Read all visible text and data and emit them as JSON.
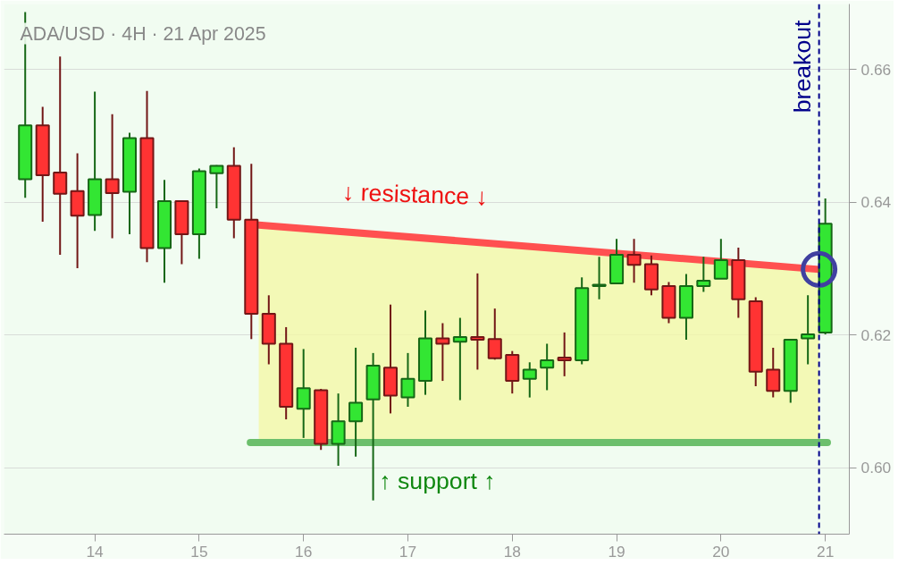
{
  "chart_data": {
    "type": "candlestick",
    "title": "ADA/USD · 4H · 21 Apr 2025",
    "x": [
      13.333,
      13.5,
      13.667,
      13.833,
      14.0,
      14.167,
      14.333,
      14.5,
      14.667,
      14.833,
      15.0,
      15.167,
      15.333,
      15.5,
      15.667,
      15.833,
      16.0,
      16.167,
      16.333,
      16.5,
      16.667,
      16.833,
      17.0,
      17.167,
      17.333,
      17.5,
      17.667,
      17.833,
      18.0,
      18.167,
      18.333,
      18.5,
      18.667,
      18.833,
      19.0,
      19.167,
      19.333,
      19.5,
      19.667,
      19.833,
      20.0,
      20.167,
      20.333,
      20.5,
      20.667,
      20.833,
      21.0
    ],
    "ohlc": [
      [
        0.6435,
        0.6687,
        0.6407,
        0.6516
      ],
      [
        0.6516,
        0.6544,
        0.6371,
        0.6441
      ],
      [
        0.6445,
        0.662,
        0.6321,
        0.6413
      ],
      [
        0.6417,
        0.6474,
        0.6301,
        0.638
      ],
      [
        0.6381,
        0.6567,
        0.6357,
        0.6435
      ],
      [
        0.6435,
        0.6533,
        0.6346,
        0.6414
      ],
      [
        0.6416,
        0.6505,
        0.6352,
        0.6497
      ],
      [
        0.6497,
        0.6568,
        0.631,
        0.6331
      ],
      [
        0.6331,
        0.6434,
        0.6279,
        0.6402
      ],
      [
        0.6402,
        0.6402,
        0.6307,
        0.6352
      ],
      [
        0.6352,
        0.6451,
        0.6315,
        0.6447
      ],
      [
        0.6444,
        0.6456,
        0.6391,
        0.6455
      ],
      [
        0.6455,
        0.6483,
        0.6346,
        0.6374
      ],
      [
        0.6374,
        0.6458,
        0.6194,
        0.6232
      ],
      [
        0.6232,
        0.626,
        0.6156,
        0.6187
      ],
      [
        0.6187,
        0.6212,
        0.6073,
        0.6092
      ],
      [
        0.6089,
        0.6179,
        0.6045,
        0.612
      ],
      [
        0.6117,
        0.6119,
        0.6027,
        0.6036
      ],
      [
        0.6036,
        0.6112,
        0.6003,
        0.607
      ],
      [
        0.607,
        0.6181,
        0.6017,
        0.6098
      ],
      [
        0.6103,
        0.6173,
        0.5951,
        0.6154
      ],
      [
        0.6151,
        0.6246,
        0.6082,
        0.6109
      ],
      [
        0.6106,
        0.6173,
        0.6092,
        0.6134
      ],
      [
        0.6131,
        0.6237,
        0.611,
        0.6195
      ],
      [
        0.6195,
        0.6218,
        0.6131,
        0.6187
      ],
      [
        0.619,
        0.6226,
        0.6102,
        0.6197
      ],
      [
        0.6197,
        0.6293,
        0.6148,
        0.6193
      ],
      [
        0.6194,
        0.624,
        0.6163,
        0.6165
      ],
      [
        0.617,
        0.6176,
        0.6112,
        0.6131
      ],
      [
        0.6134,
        0.6159,
        0.6106,
        0.6148
      ],
      [
        0.6151,
        0.6187,
        0.6117,
        0.6162
      ],
      [
        0.6166,
        0.6204,
        0.6138,
        0.6162
      ],
      [
        0.6162,
        0.6287,
        0.6156,
        0.6271
      ],
      [
        0.6274,
        0.6318,
        0.6254,
        0.6276
      ],
      [
        0.6278,
        0.6345,
        0.6278,
        0.6321
      ],
      [
        0.6321,
        0.6345,
        0.6279,
        0.6306
      ],
      [
        0.6307,
        0.632,
        0.626,
        0.6269
      ],
      [
        0.6274,
        0.628,
        0.6218,
        0.6226
      ],
      [
        0.6226,
        0.6292,
        0.6193,
        0.6274
      ],
      [
        0.6274,
        0.6318,
        0.6265,
        0.6282
      ],
      [
        0.6285,
        0.6345,
        0.6285,
        0.6313
      ],
      [
        0.6313,
        0.6332,
        0.6226,
        0.6254
      ],
      [
        0.6251,
        0.6257,
        0.6123,
        0.6145
      ],
      [
        0.6148,
        0.6181,
        0.6106,
        0.6116
      ],
      [
        0.6116,
        0.6193,
        0.6098,
        0.6193
      ],
      [
        0.6195,
        0.626,
        0.6156,
        0.6201
      ],
      [
        0.6204,
        0.6406,
        0.6201,
        0.6368
      ]
    ],
    "colors": [
      "#33e633",
      "#ff3333",
      "#ff3333",
      "#ff3333",
      "#33e633",
      "#ff3333",
      "#33e633",
      "#ff3333",
      "#33e633",
      "#ff3333",
      "#33e633",
      "#33e633",
      "#ff3333",
      "#ff3333",
      "#ff3333",
      "#ff3333",
      "#33e633",
      "#ff3333",
      "#33e633",
      "#33e633",
      "#33e633",
      "#ff3333",
      "#33e633",
      "#33e633",
      "#ff3333",
      "#33e633",
      "#ff3333",
      "#ff3333",
      "#ff3333",
      "#33e633",
      "#33e633",
      "#ff3333",
      "#33e633",
      "#33e633",
      "#33e633",
      "#ff3333",
      "#ff3333",
      "#ff3333",
      "#33e633",
      "#33e633",
      "#33e633",
      "#ff3333",
      "#ff3333",
      "#ff3333",
      "#33e633",
      "#33e633",
      "#33e633"
    ],
    "series": [
      {
        "type": "line",
        "color": "#ff5050",
        "x": [
          15.571,
          20.94
        ],
        "values": [
          0.6366,
          0.6299
        ],
        "lower": [
          0.6038,
          0.6038
        ],
        "upper": [
          0.6366,
          0.6299
        ]
      },
      {
        "type": "line",
        "color": "#6cbf6c",
        "x": [
          15.49,
          21.02
        ],
        "values": [
          0.6038,
          0.6038
        ]
      },
      {
        "type": "scatter",
        "color": "#4040a0",
        "marker": "circle",
        "x": [
          20.94
        ],
        "values": [
          0.6299
        ]
      }
    ],
    "ref_lines": [
      {
        "axis": "x",
        "value": 20.94,
        "label": "breakout",
        "color": "#00008b",
        "line_style": "dashed"
      }
    ],
    "annotations": [
      "↓ resistance ↓",
      "↑ support ↑"
    ],
    "xlim": [
      13.13,
      21.23
    ],
    "ylim": [
      0.59,
      0.6699
    ],
    "xticks": [
      14,
      15,
      16,
      17,
      18,
      19,
      20,
      21
    ],
    "yticks": [
      {
        "value": 0.6,
        "label": "0.60"
      },
      {
        "value": 0.62,
        "label": "0.62"
      },
      {
        "value": 0.64,
        "label": "0.64"
      },
      {
        "value": 0.66,
        "label": "0.66"
      }
    ],
    "grid": "y"
  }
}
